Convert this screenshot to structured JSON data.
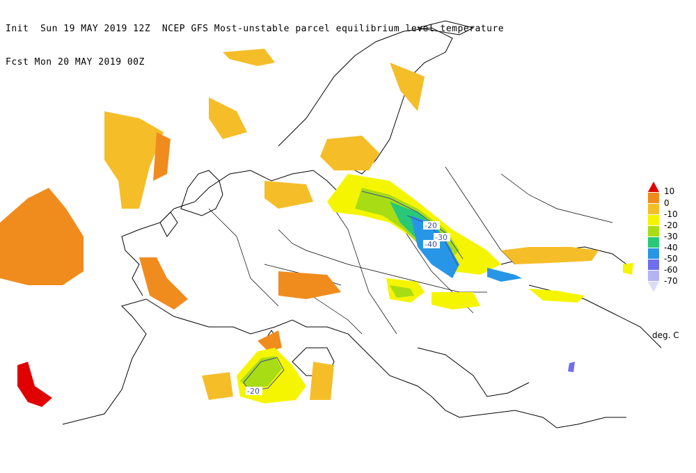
{
  "header": {
    "line1": "Init  Sun 19 MAY 2019 12Z  NCEP GFS Most-unstable parcel equilibrium level temperature",
    "line2": "Fcst Mon 20 MAY 2019 00Z"
  },
  "legend": {
    "units": "deg. C",
    "bins": [
      {
        "label": "10",
        "color": "#e00000"
      },
      {
        "label": "0",
        "color": "#f08c1e"
      },
      {
        "label": "-10",
        "color": "#f5be28"
      },
      {
        "label": "-20",
        "color": "#f5f500"
      },
      {
        "label": "-30",
        "color": "#a8dc14"
      },
      {
        "label": "-40",
        "color": "#28c878"
      },
      {
        "label": "-50",
        "color": "#2896e6"
      },
      {
        "label": "-60",
        "color": "#6e6ef0"
      },
      {
        "label": "-70",
        "color": "#b4b4f5"
      }
    ],
    "bottom_color": "#dcdcfa"
  },
  "contour_labels": [
    "-20",
    "-30",
    "-40",
    "-20"
  ]
}
